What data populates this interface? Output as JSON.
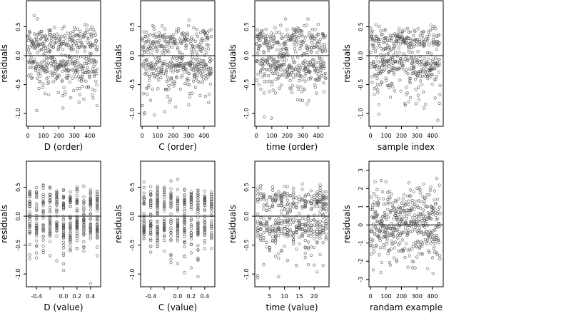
{
  "chart_data": [
    {
      "type": "scatter",
      "xlabel": "D (order)",
      "ylabel": "residuals",
      "xlim": [
        -10,
        470
      ],
      "ylim": [
        -1.22,
        0.95
      ],
      "xticks": [
        0,
        100,
        200,
        300,
        400
      ],
      "xtick_labels": [
        "0",
        "100",
        "200",
        "300",
        "400"
      ],
      "yticks": [
        -1.0,
        -0.5,
        0.0,
        0.5
      ],
      "ytick_labels": [
        "-1.0",
        "-0.5",
        "0.0",
        "0.5"
      ],
      "hline": 0,
      "n_points": 450,
      "point_mode": "order",
      "pattern": "banded",
      "seed": 11
    },
    {
      "type": "scatter",
      "xlabel": "C (order)",
      "ylabel": "residuals",
      "xlim": [
        -10,
        470
      ],
      "ylim": [
        -1.22,
        0.95
      ],
      "xticks": [
        0,
        100,
        200,
        300,
        400
      ],
      "xtick_labels": [
        "0",
        "100",
        "200",
        "300",
        "400"
      ],
      "yticks": [
        -1.0,
        -0.5,
        0.0,
        0.5
      ],
      "ytick_labels": [
        "-1.0",
        "-0.5",
        "0.0",
        "0.5"
      ],
      "hline": 0,
      "n_points": 450,
      "point_mode": "order",
      "pattern": "banded",
      "seed": 23
    },
    {
      "type": "scatter",
      "xlabel": "time (order)",
      "ylabel": "residuals",
      "xlim": [
        -10,
        470
      ],
      "ylim": [
        -1.22,
        0.95
      ],
      "xticks": [
        0,
        100,
        200,
        300,
        400
      ],
      "xtick_labels": [
        "0",
        "100",
        "200",
        "300",
        "400"
      ],
      "yticks": [
        -1.0,
        -0.5,
        0.0,
        0.5
      ],
      "ytick_labels": [
        "-1.0",
        "-0.5",
        "0.0",
        "0.5"
      ],
      "hline": 0,
      "n_points": 450,
      "point_mode": "order",
      "pattern": "banded",
      "seed": 37
    },
    {
      "type": "scatter",
      "xlabel": "sample index",
      "ylabel": "residuals",
      "xlim": [
        -10,
        470
      ],
      "ylim": [
        -1.22,
        0.95
      ],
      "xticks": [
        0,
        100,
        200,
        300,
        400
      ],
      "xtick_labels": [
        "0",
        "100",
        "200",
        "300",
        "400"
      ],
      "yticks": [
        -1.0,
        -0.5,
        0.0,
        0.5
      ],
      "ytick_labels": [
        "-1.0",
        "-0.5",
        "0.0",
        "0.5"
      ],
      "hline": 0,
      "n_points": 450,
      "point_mode": "order",
      "pattern": "banded",
      "seed": 53
    },
    {
      "type": "scatter",
      "xlabel": "D (value)",
      "ylabel": "residuals",
      "xlim": [
        -0.55,
        0.55
      ],
      "ylim": [
        -1.22,
        0.95
      ],
      "xticks": [
        -0.4,
        -0.2,
        0.0,
        0.2,
        0.4
      ],
      "xtick_labels": [
        "-0.4",
        "0.0",
        "0.2",
        "0.4"
      ],
      "xtick_label_values": [
        -0.4,
        0.0,
        0.2,
        0.4
      ],
      "yticks": [
        -1.0,
        -0.5,
        0.0,
        0.5
      ],
      "ytick_labels": [
        "-1.0",
        "-0.5",
        "0.0",
        "0.5"
      ],
      "hline": 0,
      "n_points": 450,
      "point_mode": "levels",
      "levels": [
        -0.5,
        -0.4,
        -0.3,
        -0.2,
        -0.1,
        0.0,
        0.1,
        0.2,
        0.3,
        0.4,
        0.5
      ],
      "pattern": "banded",
      "seed": 71
    },
    {
      "type": "scatter",
      "xlabel": "C (value)",
      "ylabel": "residuals",
      "xlim": [
        -0.55,
        0.55
      ],
      "ylim": [
        -1.22,
        0.95
      ],
      "xticks": [
        -0.4,
        -0.2,
        0.0,
        0.2,
        0.4
      ],
      "xtick_labels": [
        "-0.4",
        "0.0",
        "0.2",
        "0.4"
      ],
      "xtick_label_values": [
        -0.4,
        0.0,
        0.2,
        0.4
      ],
      "yticks": [
        -1.0,
        -0.5,
        0.0,
        0.5
      ],
      "ytick_labels": [
        "-1.0",
        "-0.5",
        "0.0",
        "0.5"
      ],
      "hline": 0,
      "n_points": 450,
      "point_mode": "levels",
      "levels": [
        -0.5,
        -0.4,
        -0.3,
        -0.2,
        -0.1,
        0.0,
        0.1,
        0.2,
        0.3,
        0.4,
        0.5
      ],
      "pattern": "banded",
      "seed": 89
    },
    {
      "type": "scatter",
      "xlabel": "time (value)",
      "ylabel": "residuals",
      "xlim": [
        0,
        25
      ],
      "ylim": [
        -1.22,
        0.95
      ],
      "xticks": [
        5,
        10,
        15,
        20
      ],
      "xtick_labels": [
        "5",
        "10",
        "15",
        "20"
      ],
      "yticks": [
        -1.0,
        -0.5,
        0.0,
        0.5
      ],
      "ytick_labels": [
        "-1.0",
        "-0.5",
        "0.0",
        "0.5"
      ],
      "hline": 0,
      "n_points": 450,
      "point_mode": "levels",
      "levels": [
        1,
        2,
        3,
        4,
        5,
        6,
        7,
        8,
        9,
        10,
        11,
        12,
        13,
        14,
        15,
        16,
        17,
        18,
        19,
        20,
        21,
        22,
        23,
        24
      ],
      "pattern": "banded",
      "seed": 97
    },
    {
      "type": "scatter",
      "xlabel": "randam example",
      "ylabel": "residuals",
      "xlim": [
        -10,
        470
      ],
      "ylim": [
        -3.4,
        3.5
      ],
      "xticks": [
        0,
        100,
        200,
        300,
        400
      ],
      "xtick_labels": [
        "0",
        "100",
        "200",
        "300",
        "400"
      ],
      "yticks": [
        -3,
        -2,
        -1,
        0,
        1,
        2,
        3
      ],
      "ytick_labels": [
        "-3",
        "-2",
        "-1",
        "0",
        "1",
        "2",
        "3"
      ],
      "hline": 0,
      "n_points": 450,
      "point_mode": "order",
      "pattern": "normal",
      "seed": 131
    }
  ]
}
